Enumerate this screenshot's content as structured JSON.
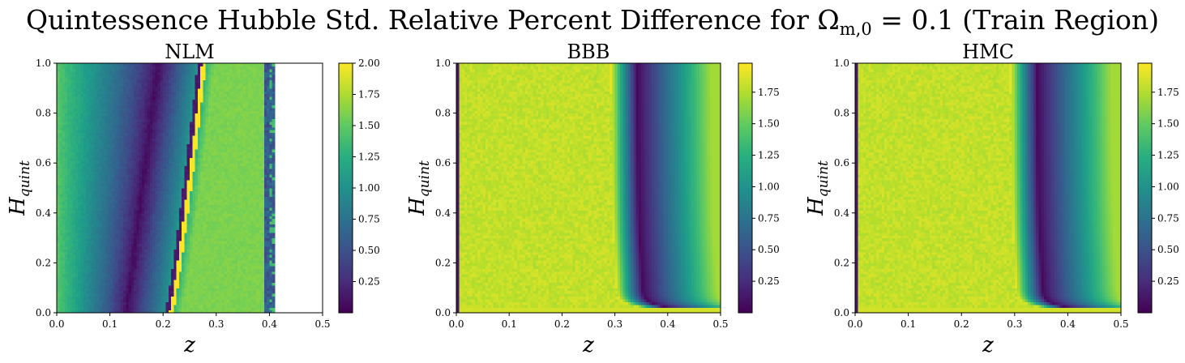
{
  "figure": {
    "suptitle_main": "Quintessence Hubble Std. Relative Percent Difference for Ω",
    "suptitle_sub": "m,0",
    "suptitle_tail": " = 0.1 (Train Region)"
  },
  "chart_data": [
    {
      "type": "heatmap",
      "title": "NLM",
      "xlabel": "z",
      "ylabel": "H",
      "ylabel_sub": "quint",
      "xlim": [
        0.0,
        0.5
      ],
      "ylim": [
        0.0,
        1.0
      ],
      "xticks": [
        "0.0",
        "0.1",
        "0.2",
        "0.3",
        "0.4",
        "0.5"
      ],
      "yticks": [
        "0.0",
        "0.2",
        "0.4",
        "0.6",
        "0.8",
        "1.0"
      ],
      "colormap": "viridis",
      "colorbar": {
        "min": 0.0,
        "max": 2.0,
        "ticks": [
          "0.25",
          "0.50",
          "0.75",
          "1.00",
          "1.25",
          "1.50",
          "1.75",
          "2.00"
        ]
      },
      "data_extent_z": [
        0.0,
        0.41
      ],
      "features": [
        {
          "z_at_H0": 0.13,
          "z_at_H1": 0.19,
          "value": 0.05,
          "kind": "minimum-valley"
        },
        {
          "z_at_H0": 0.215,
          "z_at_H1": 0.277,
          "value": 2.0,
          "kind": "spike-ridge"
        },
        {
          "z_range": [
            0.28,
            0.39
          ],
          "value": 1.5,
          "kind": "band"
        },
        {
          "z_range": [
            0.39,
            0.41
          ],
          "value": 0.5,
          "kind": "edge-band"
        }
      ]
    },
    {
      "type": "heatmap",
      "title": "BBB",
      "xlabel": "z",
      "ylabel": "H",
      "ylabel_sub": "quint",
      "xlim": [
        0.0,
        0.5
      ],
      "ylim": [
        0.0,
        1.0
      ],
      "xticks": [
        "0.0",
        "0.1",
        "0.2",
        "0.3",
        "0.4",
        "0.5"
      ],
      "yticks": [
        "0.0",
        "0.2",
        "0.4",
        "0.6",
        "0.8",
        "1.0"
      ],
      "colormap": "viridis",
      "colorbar": {
        "min": 0.0,
        "max": 1.98,
        "ticks": [
          "0.25",
          "0.50",
          "0.75",
          "1.00",
          "1.25",
          "1.50",
          "1.75"
        ]
      },
      "features": [
        {
          "z_at_H1": 0.34,
          "H_asymptote": 0.04,
          "value": 0.05,
          "kind": "minimum-curve"
        },
        {
          "z_range": [
            0.0,
            0.3
          ],
          "value": 1.85,
          "kind": "plateau"
        }
      ]
    },
    {
      "type": "heatmap",
      "title": "HMC",
      "xlabel": "z",
      "ylabel": "H",
      "ylabel_sub": "quint",
      "xlim": [
        0.0,
        0.5
      ],
      "ylim": [
        0.0,
        1.0
      ],
      "xticks": [
        "0.0",
        "0.1",
        "0.2",
        "0.3",
        "0.4",
        "0.5"
      ],
      "yticks": [
        "0.0",
        "0.2",
        "0.4",
        "0.6",
        "0.8",
        "1.0"
      ],
      "colormap": "viridis",
      "colorbar": {
        "min": 0.0,
        "max": 1.98,
        "ticks": [
          "0.25",
          "0.50",
          "0.75",
          "1.00",
          "1.25",
          "1.50",
          "1.75"
        ]
      },
      "features": [
        {
          "z_at_H1": 0.34,
          "H_asymptote": 0.04,
          "value": 0.05,
          "kind": "minimum-curve"
        },
        {
          "z_range": [
            0.0,
            0.25
          ],
          "value": 1.85,
          "kind": "plateau"
        }
      ]
    }
  ]
}
